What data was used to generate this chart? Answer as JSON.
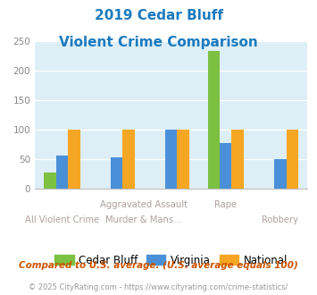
{
  "title_line1": "2019 Cedar Bluff",
  "title_line2": "Violent Crime Comparison",
  "categories": [
    "All Violent Crime",
    "Aggravated Assault",
    "Murder & Mans...",
    "Rape",
    "Robbery"
  ],
  "cedar_bluff": [
    27,
    0,
    0,
    233,
    0
  ],
  "virginia": [
    57,
    53,
    100,
    78,
    50
  ],
  "national": [
    100,
    100,
    100,
    100,
    100
  ],
  "cedar_bluff_color": "#7dc143",
  "virginia_color": "#4a90d9",
  "national_color": "#f5a623",
  "ylim": [
    0,
    250
  ],
  "yticks": [
    0,
    50,
    100,
    150,
    200,
    250
  ],
  "title_color": "#1a7abf",
  "bg_color": "#ddeef6",
  "tick_color": "#aaaaaa",
  "label_color": "#b0a0a0",
  "footnote1": "Compared to U.S. average. (U.S. average equals 100)",
  "footnote2": "© 2025 CityRating.com - https://www.cityrating.com/crime-statistics/",
  "footnote1_color": "#cc5500",
  "footnote2_color": "#999999",
  "legend_labels": [
    "Cedar Bluff",
    "Virginia",
    "National"
  ],
  "bar_width": 0.22
}
